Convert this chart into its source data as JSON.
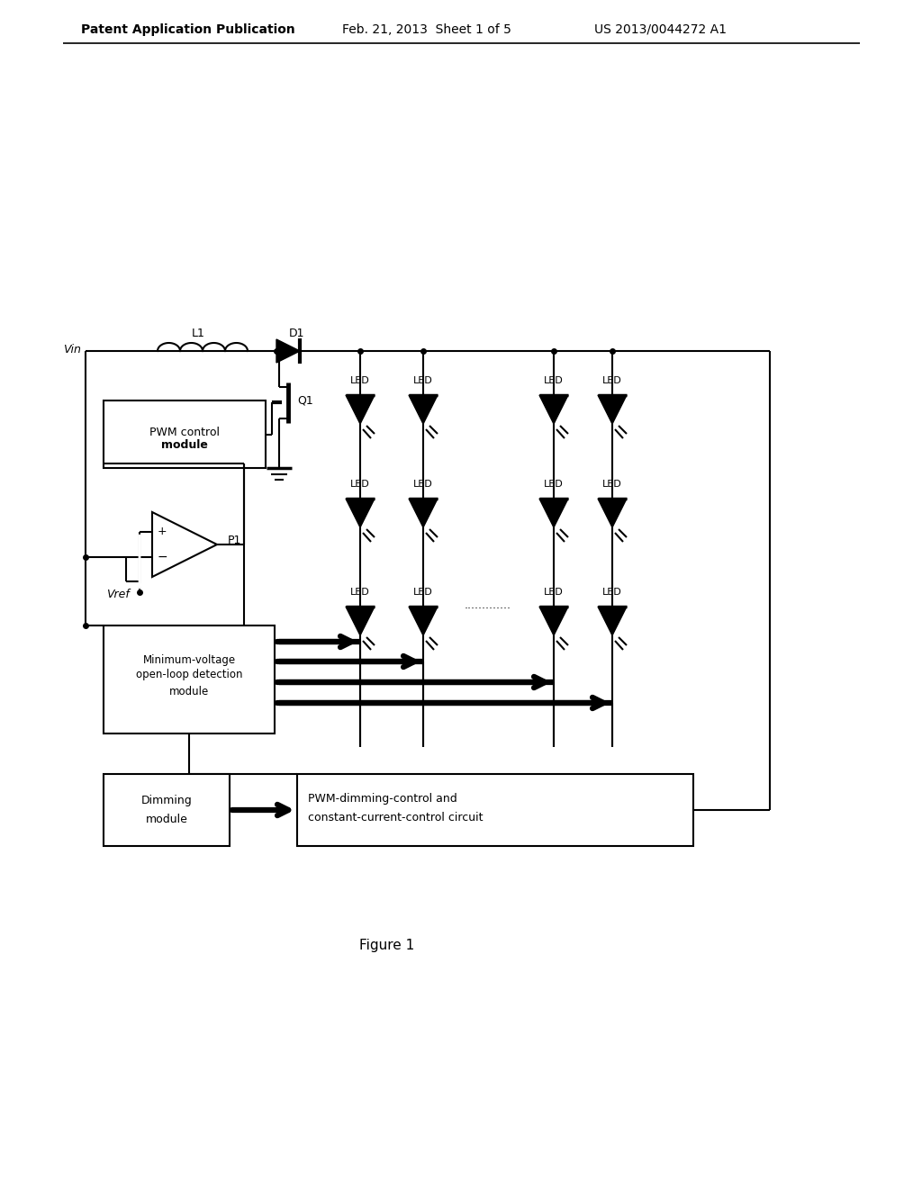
{
  "bg_color": "#ffffff",
  "header_left": "Patent Application Publication",
  "header_mid": "Feb. 21, 2013  Sheet 1 of 5",
  "header_right": "US 2013/0044272 A1",
  "caption": "Figure 1",
  "vin_label": "Vin",
  "l1_label": "L1",
  "d1_label": "D1",
  "q1_label": "Q1",
  "p1_label": "P1",
  "vref_label": "Vref",
  "pwm_box_label": "PWM control module",
  "minvolt_line1": "Minimum-voltage",
  "minvolt_line2": "open-loop detection",
  "minvolt_line3": "module",
  "dimming_line1": "Dimming",
  "dimming_line2": "module",
  "pwmcc_line1": "PWM-dimming-control and",
  "pwmcc_line2": "constant-current-control circuit",
  "led_label": "LED",
  "dots": ".............",
  "line_color": "#000000"
}
